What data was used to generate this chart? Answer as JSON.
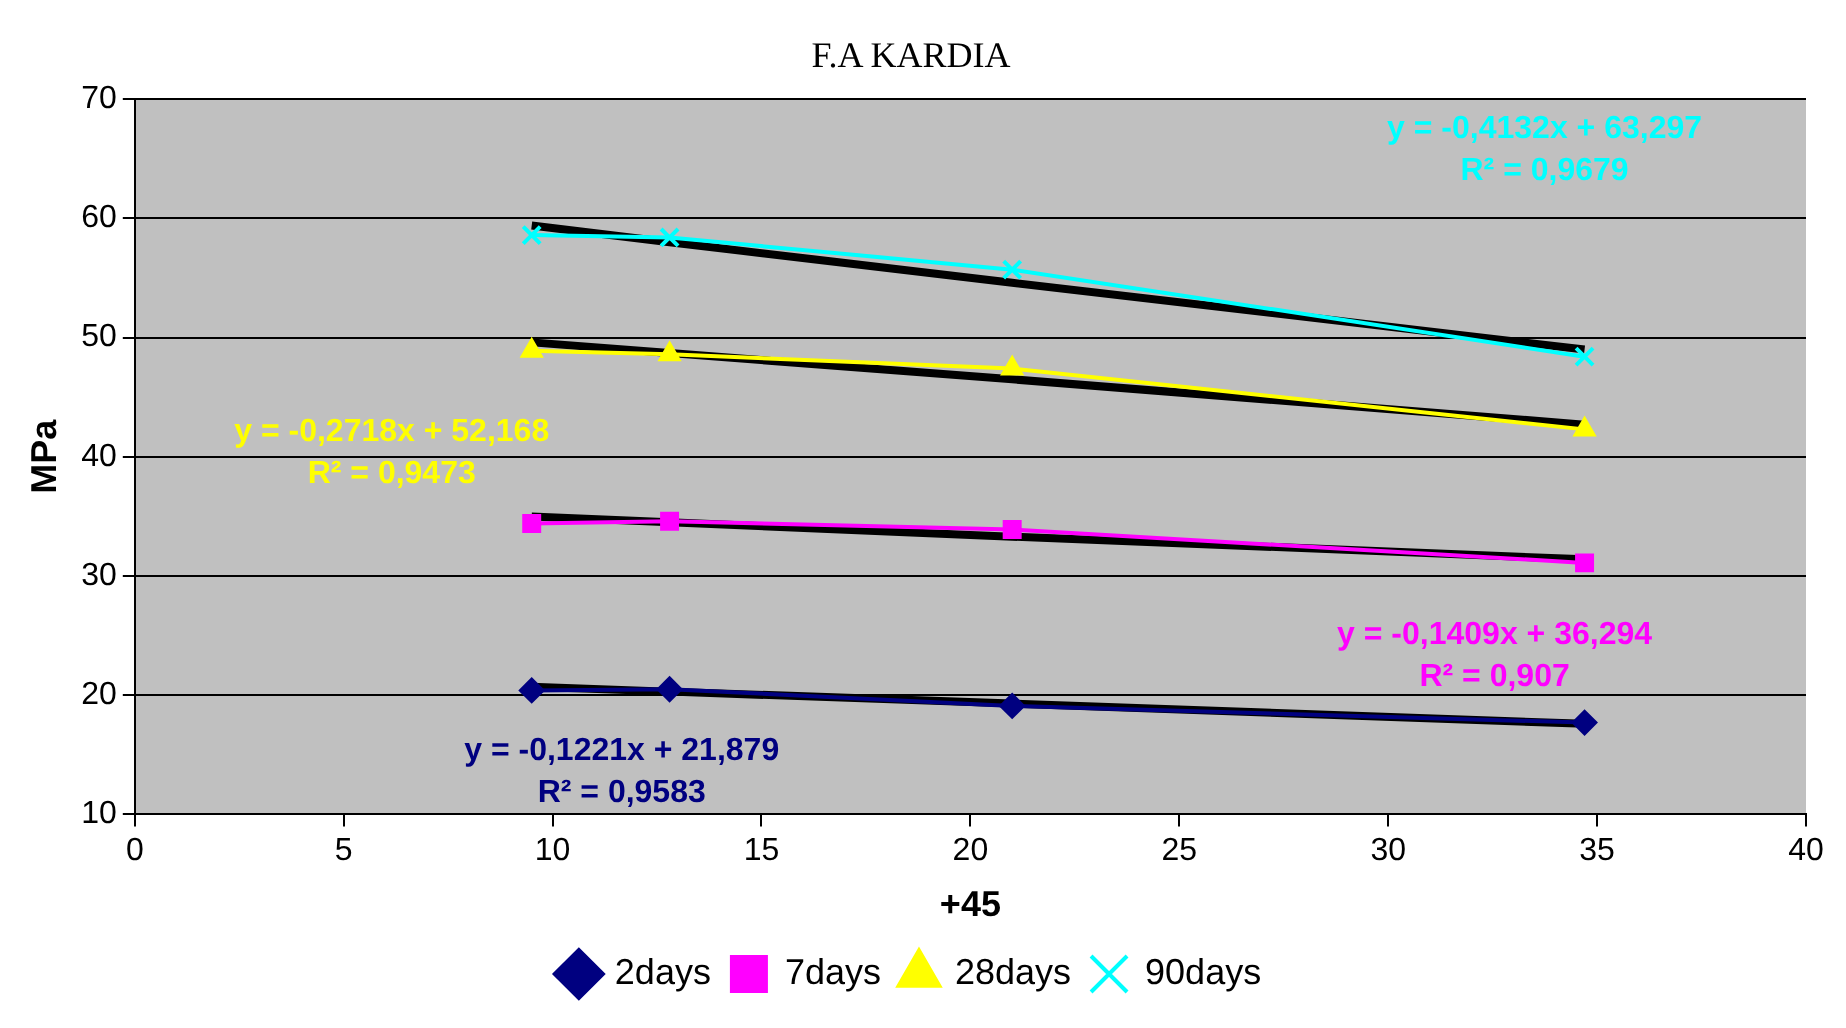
{
  "chart_data": {
    "type": "line",
    "title": "F.A KARDIA",
    "xlabel": "+45",
    "ylabel": "MPa",
    "x": [
      9.5,
      12.8,
      21,
      34.7
    ],
    "xlim": [
      0,
      40
    ],
    "xticks": [
      0,
      5,
      10,
      15,
      20,
      25,
      30,
      35,
      40
    ],
    "ylim": [
      10,
      70
    ],
    "yticks": [
      10,
      20,
      30,
      40,
      50,
      60,
      70
    ],
    "grid": "y",
    "legend": "bottom",
    "series": [
      {
        "name": "2days",
        "color": "#000080",
        "marker": "diamond",
        "values": [
          20.4,
          20.5,
          19.1,
          17.7
        ]
      },
      {
        "name": "7days",
        "color": "#ff00ff",
        "marker": "square",
        "values": [
          34.4,
          34.6,
          33.9,
          31.1
        ]
      },
      {
        "name": "28days",
        "color": "#ffff00",
        "marker": "triangle",
        "values": [
          48.9,
          48.6,
          47.4,
          42.3
        ]
      },
      {
        "name": "90days",
        "color": "#00ffff",
        "marker": "cross",
        "values": [
          58.6,
          58.4,
          55.7,
          48.4
        ]
      },
      {
        "type": "line",
        "color": "#000000",
        "marker": "none",
        "values": [
          20.7,
          20.3,
          19.3,
          17.6
        ]
      },
      {
        "type": "line",
        "color": "#000000",
        "marker": "none",
        "values": [
          35.0,
          34.5,
          33.3,
          31.4
        ]
      },
      {
        "type": "line",
        "color": "#000000",
        "marker": "none",
        "values": [
          49.6,
          48.7,
          46.5,
          42.7
        ]
      },
      {
        "type": "line",
        "color": "#000000",
        "marker": "none",
        "values": [
          59.4,
          58.0,
          54.6,
          49.0
        ]
      }
    ],
    "annotations": [
      "y = -0,1221x + 21,879",
      "R² = 0,9583",
      "y = -0,1409x + 36,294",
      "R² = 0,907",
      "y = -0,2718x + 52,168",
      "R² = 0,9473",
      "y = -0,4132x + 63,297",
      "R² = 0,9679"
    ]
  }
}
